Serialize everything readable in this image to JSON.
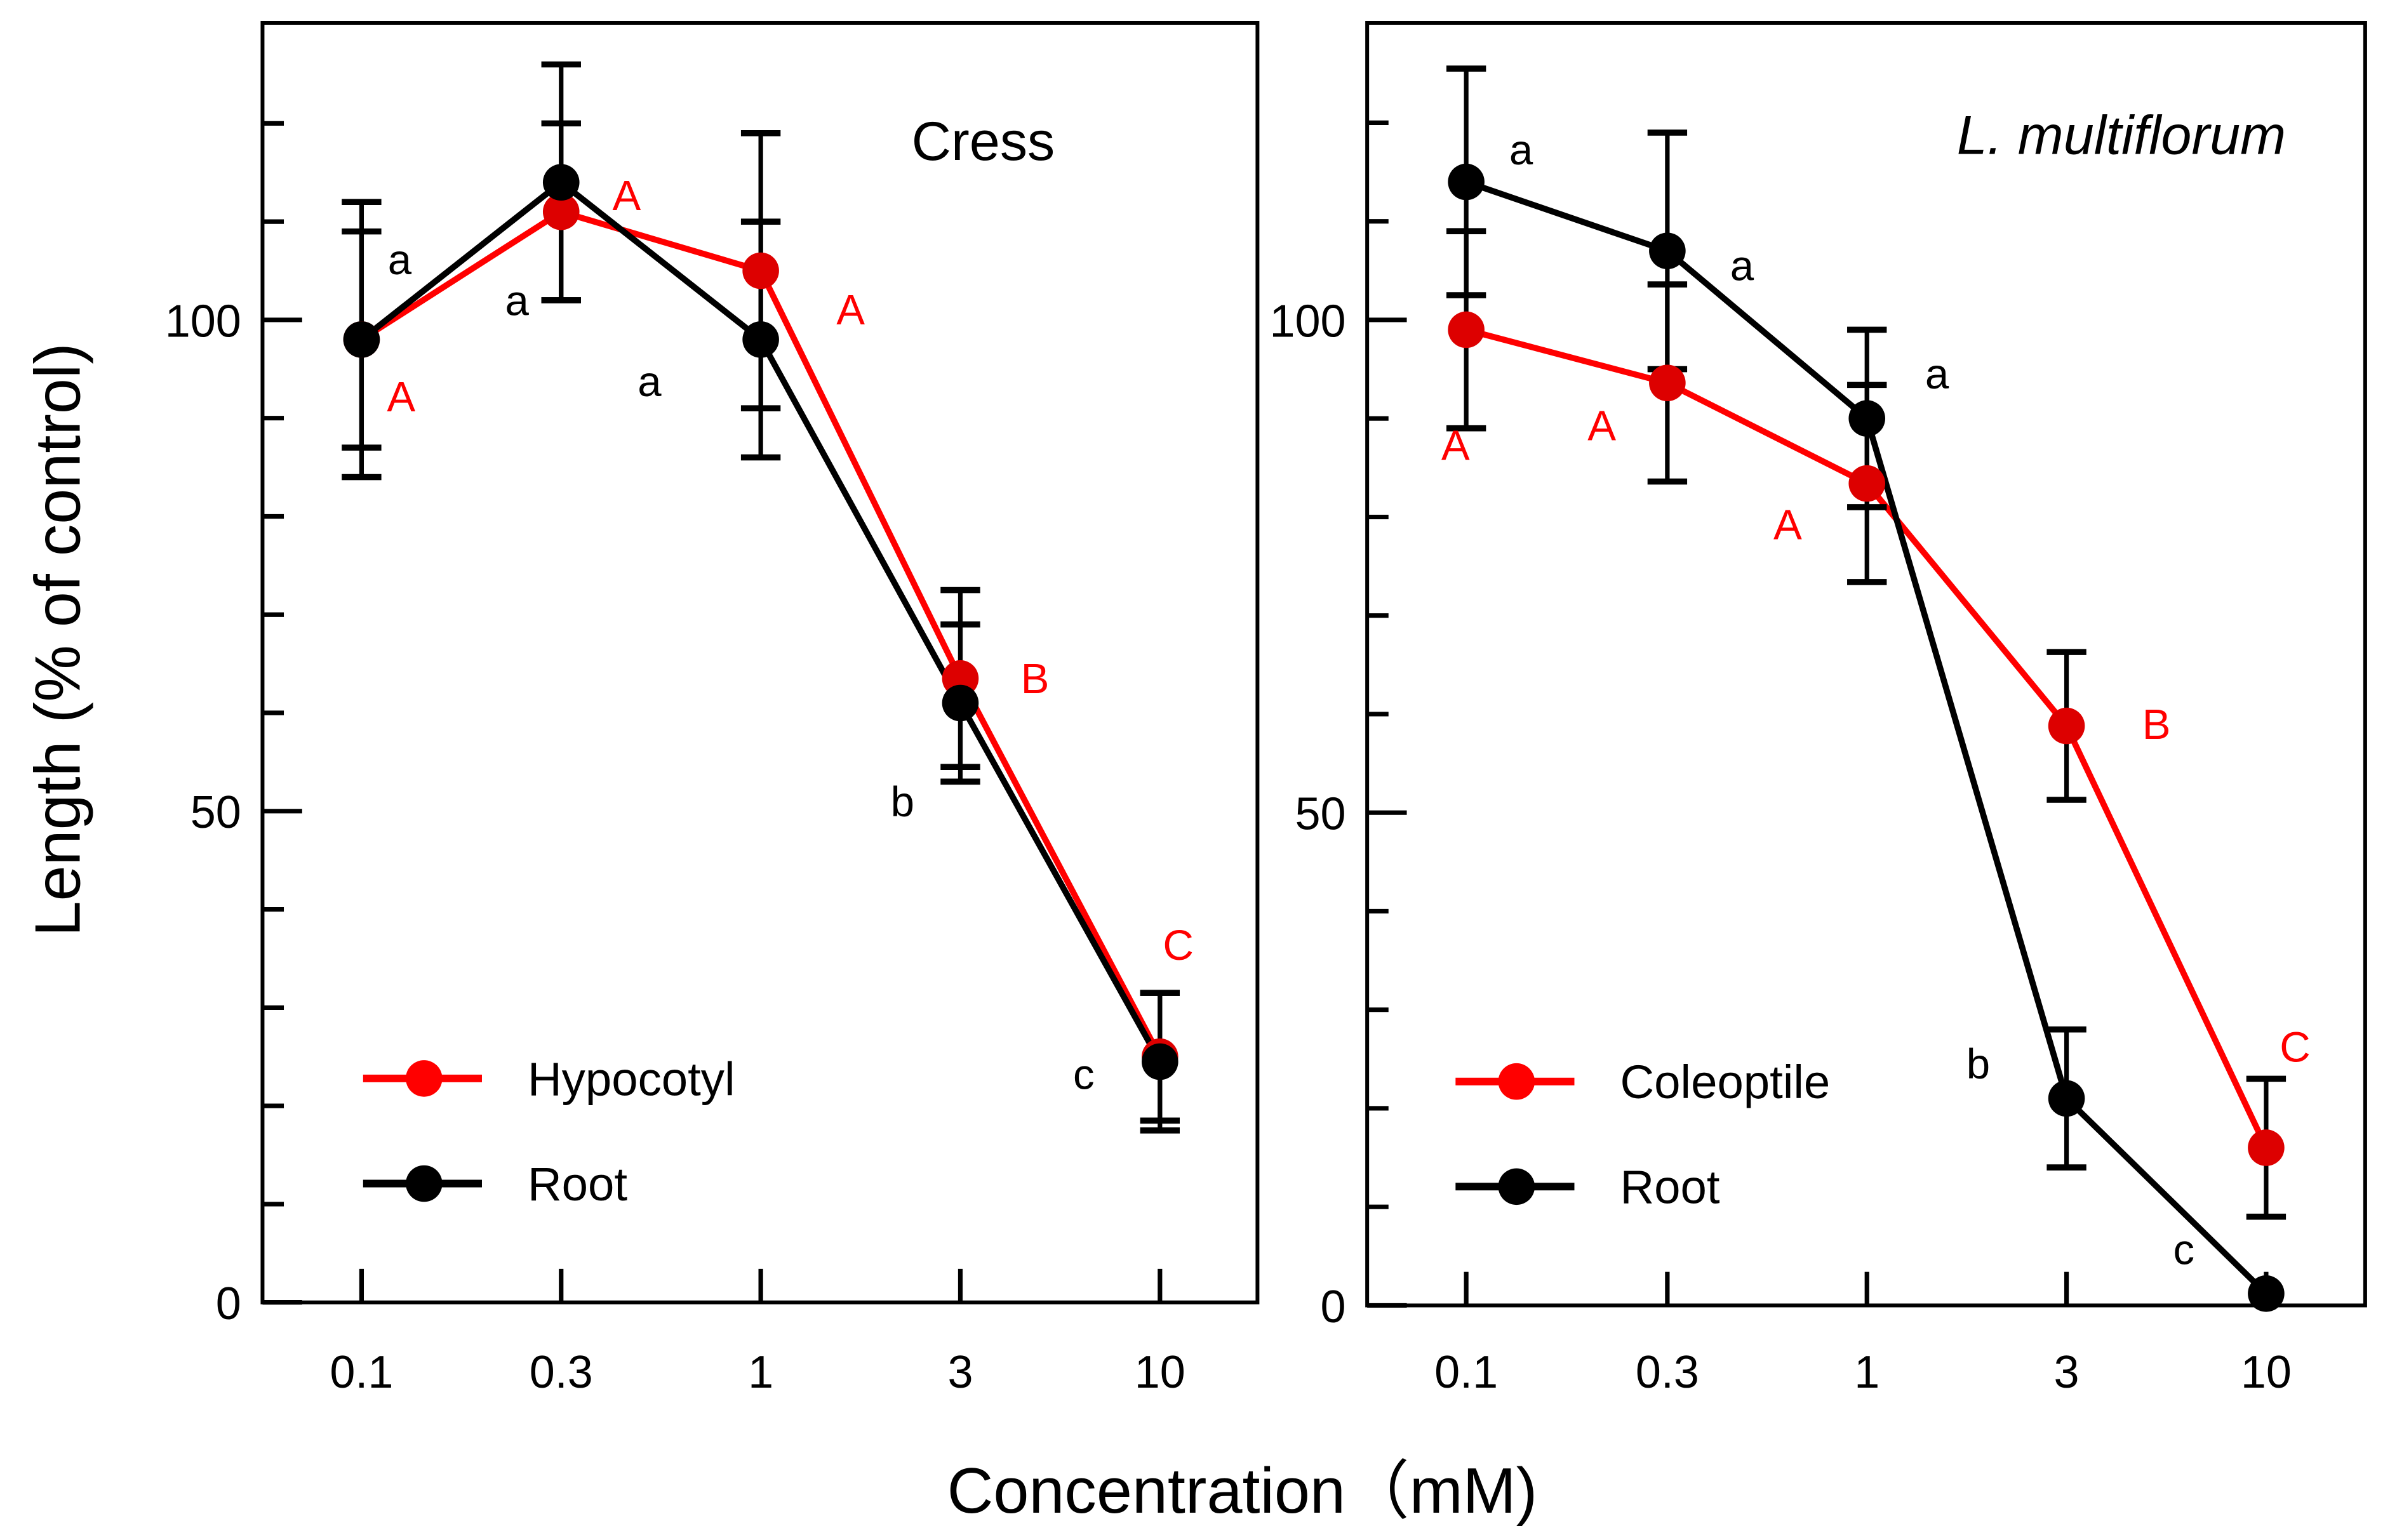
{
  "chart_data": [
    {
      "type": "line",
      "title": "Cress",
      "x": [
        "0.1",
        "0.3",
        "1",
        "3",
        "10"
      ],
      "ylim": [
        0,
        130
      ],
      "yticks": [
        0,
        50,
        100
      ],
      "legend_placement": "bottom-left",
      "series": [
        {
          "name": "Hypocotyl",
          "color": "#ff0000",
          "values": [
            98,
            111,
            105,
            63.5,
            25
          ],
          "errors": [
            14,
            9,
            14,
            9,
            6.5
          ],
          "letters": [
            "A",
            "A",
            "A",
            "B",
            "C"
          ]
        },
        {
          "name": "Root",
          "color": "#000000",
          "values": [
            98,
            114,
            98,
            61,
            24.5
          ],
          "errors": [
            11,
            12,
            12,
            8,
            7
          ],
          "letters": [
            "a",
            "a",
            "a",
            "b",
            "c"
          ]
        }
      ]
    },
    {
      "type": "line",
      "title": "L. multiflorum",
      "x": [
        "0.1",
        "0.3",
        "1",
        "3",
        "10"
      ],
      "ylim": [
        0,
        130
      ],
      "yticks": [
        0,
        50,
        100
      ],
      "legend_placement": "bottom-left",
      "series": [
        {
          "name": "Coleoptile",
          "color": "#ff0000",
          "values": [
            99,
            93.6,
            83.4,
            58.8,
            16
          ],
          "errors": [
            10,
            10,
            10,
            7.5,
            7
          ],
          "letters": [
            "A",
            "A",
            "A",
            "B",
            "C"
          ]
        },
        {
          "name": "Root",
          "color": "#000000",
          "values": [
            114,
            107,
            90,
            21,
            1.2
          ],
          "errors": [
            11.5,
            12,
            9,
            7,
            0
          ],
          "letters": [
            "a",
            "a",
            "a",
            "b",
            "c"
          ]
        }
      ]
    }
  ],
  "ylabel": "Length  (% of control)",
  "xlabel": "Concentration（mM)"
}
